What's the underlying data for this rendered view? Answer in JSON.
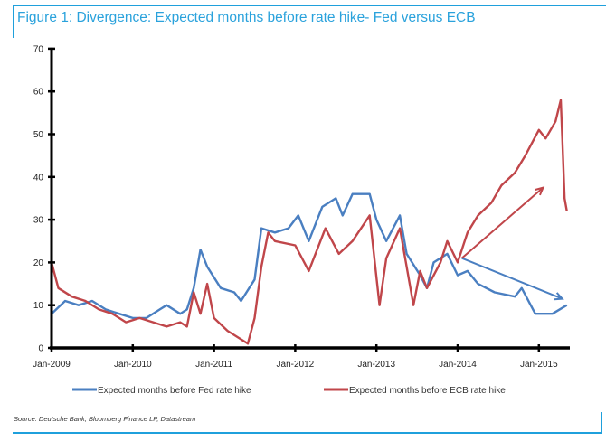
{
  "chart_data": {
    "type": "line",
    "title": "Figure 1: Divergence: Expected months before rate hike- Fed versus ECB",
    "source": "Source: Deutsche Bank, Bloomberg Finance LP, Datastream",
    "xlabel": "",
    "ylabel": "",
    "ylim": [
      0,
      70
    ],
    "yticks": [
      "0",
      "10",
      "20",
      "30",
      "40",
      "50",
      "60",
      "70"
    ],
    "xticks": [
      {
        "date": "2009-01-01",
        "label": "Jan-2009"
      },
      {
        "date": "2010-01-01",
        "label": "Jan-2010"
      },
      {
        "date": "2011-01-01",
        "label": "Jan-2011"
      },
      {
        "date": "2012-01-01",
        "label": "Jan-2012"
      },
      {
        "date": "2013-01-01",
        "label": "Jan-2013"
      },
      {
        "date": "2014-01-01",
        "label": "Jan-2014"
      },
      {
        "date": "2015-01-01",
        "label": "Jan-2015"
      }
    ],
    "xlim": [
      "2009-01-01",
      "2015-05-15"
    ],
    "grid": false,
    "legend_position": "bottom",
    "series": [
      {
        "name": "Expected months before Fed rate hike",
        "color": "#4a7fc1",
        "points": [
          [
            "2009-01-01",
            8
          ],
          [
            "2009-03-01",
            11
          ],
          [
            "2009-05-01",
            10
          ],
          [
            "2009-07-01",
            11
          ],
          [
            "2009-09-01",
            9
          ],
          [
            "2009-11-01",
            8
          ],
          [
            "2010-01-01",
            7
          ],
          [
            "2010-03-01",
            7
          ],
          [
            "2010-05-01",
            9
          ],
          [
            "2010-06-01",
            10
          ],
          [
            "2010-08-01",
            8
          ],
          [
            "2010-09-01",
            9
          ],
          [
            "2010-10-01",
            14
          ],
          [
            "2010-11-01",
            23
          ],
          [
            "2010-12-01",
            19
          ],
          [
            "2011-02-01",
            14
          ],
          [
            "2011-04-01",
            13
          ],
          [
            "2011-05-01",
            11
          ],
          [
            "2011-07-01",
            16
          ],
          [
            "2011-08-01",
            28
          ],
          [
            "2011-10-01",
            27
          ],
          [
            "2011-12-01",
            28
          ],
          [
            "2012-01-15",
            31
          ],
          [
            "2012-03-01",
            25
          ],
          [
            "2012-05-01",
            33
          ],
          [
            "2012-07-01",
            35
          ],
          [
            "2012-08-01",
            31
          ],
          [
            "2012-09-15",
            36
          ],
          [
            "2012-12-01",
            36
          ],
          [
            "2013-01-01",
            30
          ],
          [
            "2013-02-15",
            25
          ],
          [
            "2013-04-15",
            31
          ],
          [
            "2013-05-15",
            22
          ],
          [
            "2013-07-15",
            17
          ],
          [
            "2013-08-15",
            14
          ],
          [
            "2013-09-15",
            20
          ],
          [
            "2013-11-15",
            22
          ],
          [
            "2014-01-01",
            17
          ],
          [
            "2014-02-15",
            18
          ],
          [
            "2014-04-01",
            15
          ],
          [
            "2014-06-15",
            13
          ],
          [
            "2014-09-15",
            12
          ],
          [
            "2014-10-15",
            14
          ],
          [
            "2014-12-15",
            8
          ],
          [
            "2015-03-01",
            8
          ],
          [
            "2015-05-05",
            10
          ]
        ]
      },
      {
        "name": "Expected months before ECB rate hike",
        "color": "#c0464a",
        "points": [
          [
            "2009-01-01",
            20
          ],
          [
            "2009-02-01",
            14
          ],
          [
            "2009-04-01",
            12
          ],
          [
            "2009-06-01",
            11
          ],
          [
            "2009-08-01",
            9
          ],
          [
            "2009-10-01",
            8
          ],
          [
            "2009-12-01",
            6
          ],
          [
            "2010-02-01",
            7
          ],
          [
            "2010-04-01",
            6
          ],
          [
            "2010-06-01",
            5
          ],
          [
            "2010-08-01",
            6
          ],
          [
            "2010-09-01",
            5
          ],
          [
            "2010-10-01",
            13
          ],
          [
            "2010-11-01",
            8
          ],
          [
            "2010-12-01",
            15
          ],
          [
            "2011-01-01",
            7
          ],
          [
            "2011-03-01",
            4
          ],
          [
            "2011-05-01",
            2
          ],
          [
            "2011-06-01",
            1
          ],
          [
            "2011-07-01",
            7
          ],
          [
            "2011-08-01",
            19
          ],
          [
            "2011-09-01",
            27
          ],
          [
            "2011-10-01",
            25
          ],
          [
            "2012-01-01",
            24
          ],
          [
            "2012-03-01",
            18
          ],
          [
            "2012-05-15",
            28
          ],
          [
            "2012-07-15",
            22
          ],
          [
            "2012-09-15",
            25
          ],
          [
            "2012-12-01",
            31
          ],
          [
            "2013-01-15",
            10
          ],
          [
            "2013-02-15",
            21
          ],
          [
            "2013-04-15",
            28
          ],
          [
            "2013-06-15",
            10
          ],
          [
            "2013-07-15",
            18
          ],
          [
            "2013-08-15",
            14
          ],
          [
            "2013-10-15",
            20
          ],
          [
            "2013-11-15",
            25
          ],
          [
            "2014-01-01",
            20
          ],
          [
            "2014-02-15",
            27
          ],
          [
            "2014-04-01",
            31
          ],
          [
            "2014-06-01",
            34
          ],
          [
            "2014-07-15",
            38
          ],
          [
            "2014-09-15",
            41
          ],
          [
            "2014-11-01",
            45
          ],
          [
            "2015-01-01",
            51
          ],
          [
            "2015-02-01",
            49
          ],
          [
            "2015-03-15",
            53
          ],
          [
            "2015-04-08",
            58
          ],
          [
            "2015-04-15",
            49
          ],
          [
            "2015-04-25",
            35
          ],
          [
            "2015-05-05",
            32
          ]
        ]
      }
    ],
    "annotations": [
      {
        "type": "arrow",
        "color": "#c0464a",
        "from": [
          "2014-01-20",
          21
        ],
        "to": [
          "2015-01-20",
          37.5
        ]
      },
      {
        "type": "arrow",
        "color": "#4a7fc1",
        "from": [
          "2014-01-20",
          21
        ],
        "to": [
          "2015-04-15",
          11.5
        ]
      }
    ]
  }
}
